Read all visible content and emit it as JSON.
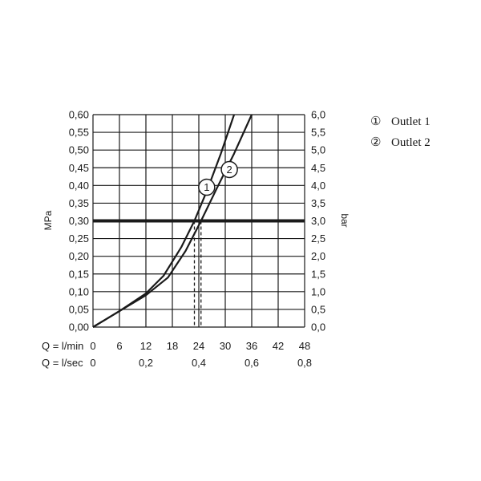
{
  "chart_data": {
    "type": "line",
    "left_axis": {
      "label": "MPa",
      "ticks": [
        "0,00",
        "0,05",
        "0,10",
        "0,15",
        "0,20",
        "0,25",
        "0,30",
        "0,35",
        "0,40",
        "0,45",
        "0,50",
        "0,55",
        "0,60"
      ],
      "range": [
        0,
        0.6
      ]
    },
    "right_axis": {
      "label": "bar",
      "ticks": [
        "0,0",
        "0,5",
        "1,0",
        "1,5",
        "2,0",
        "2,5",
        "3,0",
        "3,5",
        "4,0",
        "4,5",
        "5,0",
        "5,5",
        "6,0"
      ],
      "range": [
        0,
        6
      ]
    },
    "x_axis_lmin": {
      "label": "Q = l/min",
      "ticks": [
        "0",
        "6",
        "12",
        "18",
        "24",
        "30",
        "36",
        "42",
        "48"
      ],
      "range": [
        0,
        48
      ]
    },
    "x_axis_lsec": {
      "label": "Q = l/sec",
      "ticks": [
        "0",
        "0,2",
        "0,4",
        "0,6",
        "0,8"
      ],
      "values": [
        0,
        0.2,
        0.4,
        0.6,
        0.8
      ]
    },
    "reference_line": {
      "y": 0.3
    },
    "series": [
      {
        "name": "Outlet 1",
        "marker": "1",
        "x": [
          0,
          6,
          12,
          16,
          20,
          23,
          26,
          29,
          32
        ],
        "y": [
          0,
          0.045,
          0.095,
          0.145,
          0.225,
          0.3,
          0.39,
          0.49,
          0.6
        ]
      },
      {
        "name": "Outlet 2",
        "marker": "2",
        "x": [
          0,
          6,
          12,
          17,
          21,
          24.5,
          28,
          32,
          36
        ],
        "y": [
          0,
          0.045,
          0.09,
          0.14,
          0.215,
          0.3,
          0.39,
          0.49,
          0.6
        ]
      }
    ],
    "legend": [
      {
        "symbol": "①",
        "label": "Outlet 1"
      },
      {
        "symbol": "②",
        "label": "Outlet 2"
      }
    ],
    "legend_position": "top-right",
    "grid": true
  }
}
